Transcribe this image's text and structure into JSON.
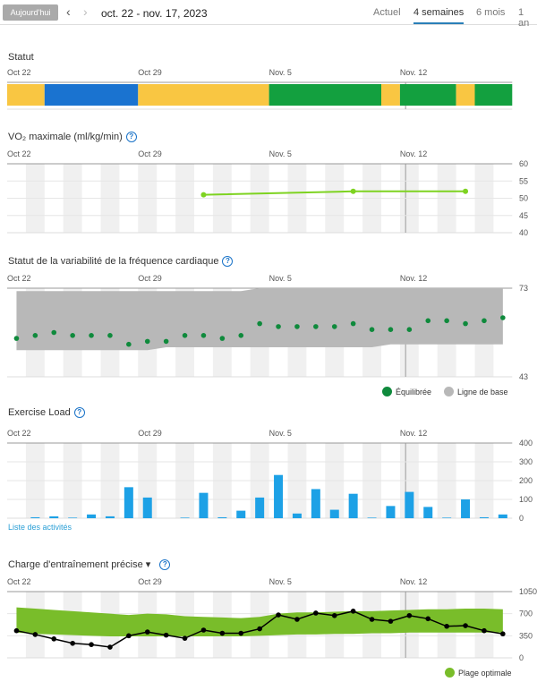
{
  "header": {
    "today": "Aujourd'hui",
    "range": "oct. 22 - nov. 17, 2023",
    "tabs": [
      "Actuel",
      "4 semaines",
      "6 mois",
      "1 an"
    ],
    "active_tab": 1
  },
  "x_labels": [
    "Oct 22",
    "Oct 29",
    "Nov. 5",
    "Nov. 12"
  ],
  "days": 27,
  "colors": {
    "yellow": "#f9c642",
    "blue": "#1a73d0",
    "green": "#13a03f",
    "lime": "#7ed321",
    "band": "#b8b8b8",
    "hrv": "#0f8a3c",
    "bar": "#1da1e6",
    "optimal": "#79bd2a"
  },
  "status": {
    "title": "Statut",
    "segments": [
      {
        "days": 2,
        "color": "yellow"
      },
      {
        "days": 5,
        "color": "blue"
      },
      {
        "days": 7,
        "color": "yellow"
      },
      {
        "days": 6,
        "color": "green"
      },
      {
        "days": 1,
        "color": "yellow"
      },
      {
        "days": 3,
        "color": "green"
      },
      {
        "days": 1,
        "color": "yellow"
      },
      {
        "days": 2,
        "color": "green"
      }
    ]
  },
  "chart_data": [
    {
      "type": "line",
      "title": "VO₂ maximale (ml/kg/min)",
      "ylim": [
        40,
        60
      ],
      "yticks": [
        "60",
        "55",
        "50",
        "45",
        "40"
      ],
      "points": [
        {
          "day": 10,
          "value": 51
        },
        {
          "day": 18,
          "value": 52
        },
        {
          "day": 24,
          "value": 52
        }
      ]
    },
    {
      "type": "scatter",
      "title": "Statut de la variabilité de la fréquence cardiaque",
      "ylim": [
        43,
        73
      ],
      "yticks": [
        "73",
        "43"
      ],
      "values": [
        56,
        57,
        58,
        57,
        57,
        57,
        54,
        55,
        55,
        57,
        57,
        56,
        57,
        61,
        60,
        60,
        60,
        60,
        61,
        59,
        59,
        59,
        62,
        62,
        61,
        62,
        63
      ],
      "baseline_high": [
        72,
        72,
        72,
        72,
        72,
        72,
        72,
        72,
        72,
        72,
        72,
        72,
        72,
        73,
        73,
        73,
        73,
        73,
        73,
        73,
        73,
        73,
        73,
        73,
        73,
        73,
        73
      ],
      "baseline_low": [
        52,
        52,
        52,
        52,
        52,
        52,
        52,
        52,
        53,
        53,
        53,
        53,
        53,
        53,
        53,
        53,
        53,
        53,
        53,
        53,
        54,
        54,
        54,
        54,
        54,
        54,
        54
      ],
      "legend": [
        "Équilibrée",
        "Ligne de base"
      ]
    },
    {
      "type": "bar",
      "title": "Exercise Load",
      "ylim": [
        0,
        400
      ],
      "yticks": [
        "400",
        "300",
        "200",
        "100",
        "0"
      ],
      "values": [
        0,
        5,
        10,
        3,
        20,
        10,
        165,
        110,
        0,
        3,
        135,
        5,
        40,
        110,
        230,
        25,
        155,
        45,
        130,
        3,
        65,
        140,
        60,
        3,
        100,
        5,
        20
      ],
      "link": "Liste des activités"
    },
    {
      "type": "area",
      "title": "Charge d'entraînement précise ▾",
      "ylim": [
        0,
        1050
      ],
      "yticks": [
        "1050",
        "700",
        "350",
        "0"
      ],
      "values": [
        430,
        370,
        300,
        230,
        210,
        170,
        350,
        410,
        360,
        310,
        440,
        390,
        390,
        460,
        680,
        610,
        710,
        670,
        740,
        610,
        580,
        670,
        620,
        500,
        510,
        430,
        380
      ],
      "optimal_high": [
        800,
        780,
        760,
        740,
        720,
        700,
        680,
        700,
        690,
        660,
        650,
        640,
        630,
        650,
        700,
        720,
        720,
        730,
        740,
        740,
        750,
        760,
        770,
        770,
        780,
        780,
        770
      ],
      "optimal_low": [
        400,
        380,
        370,
        360,
        350,
        340,
        340,
        340,
        340,
        340,
        340,
        340,
        340,
        350,
        360,
        370,
        370,
        380,
        380,
        390,
        390,
        400,
        400,
        400,
        400,
        400,
        400
      ],
      "legend": [
        "Plage optimale"
      ]
    }
  ]
}
